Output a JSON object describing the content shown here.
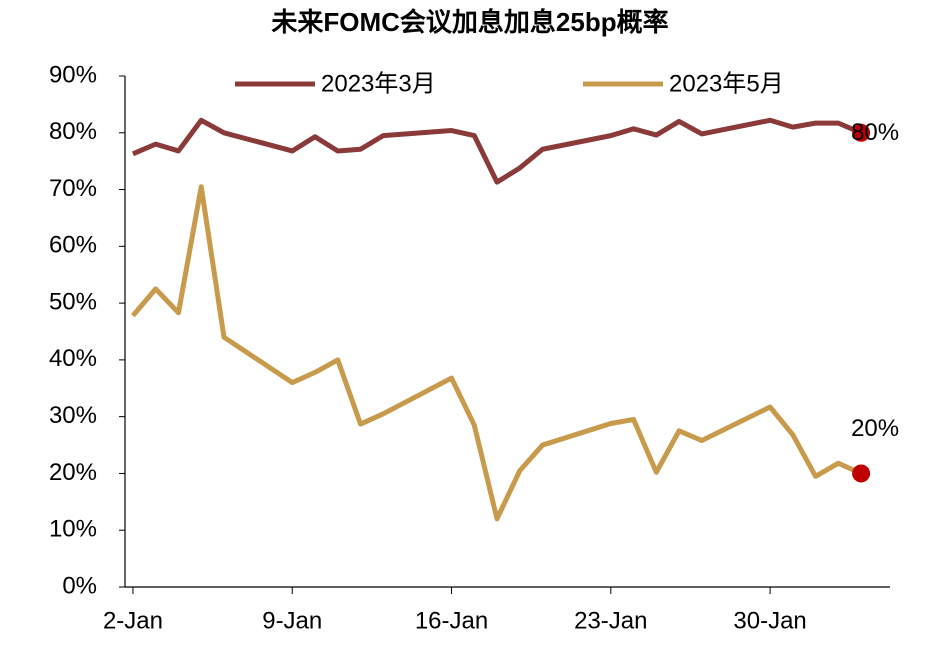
{
  "chart_data": {
    "type": "line",
    "title": "未来FOMC会议加息加息25bp概率",
    "x": [
      2,
      3,
      4,
      5,
      6,
      9,
      10,
      11,
      12,
      13,
      16,
      17,
      18,
      19,
      20,
      23,
      24,
      25,
      26,
      27,
      30,
      31,
      32,
      33,
      34
    ],
    "xlim": [
      1.65,
      35.27
    ],
    "xticks": [
      {
        "value": 2,
        "label": "2-Jan"
      },
      {
        "value": 9,
        "label": "9-Jan"
      },
      {
        "value": 16,
        "label": "16-Jan"
      },
      {
        "value": 23,
        "label": "23-Jan"
      },
      {
        "value": 30,
        "label": "30-Jan"
      }
    ],
    "ylim": [
      0,
      90
    ],
    "yticks": [
      {
        "value": 0,
        "label": "0%"
      },
      {
        "value": 10,
        "label": "10%"
      },
      {
        "value": 20,
        "label": "20%"
      },
      {
        "value": 30,
        "label": "30%"
      },
      {
        "value": 40,
        "label": "40%"
      },
      {
        "value": 50,
        "label": "50%"
      },
      {
        "value": 60,
        "label": "60%"
      },
      {
        "value": 70,
        "label": "70%"
      },
      {
        "value": 80,
        "label": "80%"
      },
      {
        "value": 90,
        "label": "90%"
      }
    ],
    "grid": false,
    "marker_color": "#c00000",
    "series": [
      {
        "name": "2023年3月",
        "color": "#8b3a3a",
        "values": [
          76.3,
          78,
          76.8,
          82.2,
          80,
          76.8,
          79.3,
          76.8,
          77.1,
          79.5,
          80.4,
          79.5,
          71.3,
          73.8,
          77.1,
          79.5,
          80.7,
          79.6,
          82,
          79.8,
          82.2,
          81,
          81.7,
          81.7,
          80
        ],
        "value_labels": [
          null,
          null,
          null,
          null,
          null,
          null,
          null,
          null,
          null,
          null,
          null,
          null,
          null,
          null,
          null,
          null,
          null,
          null,
          null,
          null,
          null,
          null,
          null,
          null,
          "80%"
        ]
      },
      {
        "name": "2023年5月",
        "color": "#c89a4c",
        "values": [
          47.8,
          52.5,
          48.3,
          70.5,
          44,
          36,
          37.8,
          40,
          28.7,
          30.5,
          36.8,
          28.5,
          12,
          20.5,
          25,
          28.8,
          29.5,
          20.2,
          27.5,
          25.8,
          31.7,
          26.8,
          19.5,
          21.8,
          20
        ],
        "value_labels": [
          null,
          null,
          null,
          null,
          null,
          null,
          null,
          null,
          null,
          null,
          null,
          null,
          null,
          null,
          null,
          null,
          null,
          null,
          null,
          null,
          null,
          null,
          null,
          null,
          "20%"
        ]
      }
    ]
  }
}
